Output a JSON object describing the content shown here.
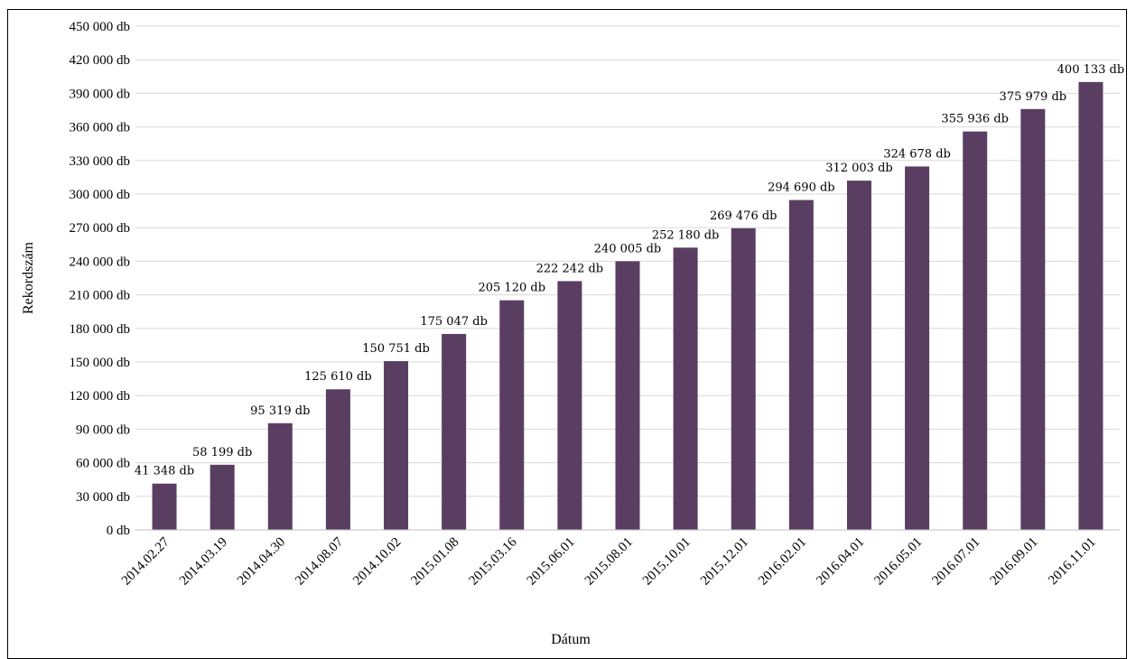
{
  "chart_data": {
    "type": "bar",
    "title": "",
    "xlabel": "Dátum",
    "ylabel": "Rekordszám",
    "ylim": [
      0,
      450000
    ],
    "y_tick_step": 30000,
    "y_tick_labels": [
      "0 db",
      "30 000 db",
      "60 000 db",
      "90 000 db",
      "120 000 db",
      "150 000 db",
      "180 000 db",
      "210 000 db",
      "240 000 db",
      "270 000 db",
      "300 000 db",
      "330 000 db",
      "360 000 db",
      "390 000 db",
      "420 000 db",
      "450 000 db"
    ],
    "grid": true,
    "legend": "none",
    "bar_color": "#5a3e62",
    "categories": [
      "2014.02.27",
      "2014.03.19",
      "2014.04.30",
      "2014.08.07",
      "2014.10.02",
      "2015.01.08",
      "2015.03.16",
      "2015.06.01",
      "2015.08.01",
      "2015.10.01",
      "2015.12.01",
      "2016.02.01",
      "2016.04.01",
      "2016.05.01",
      "2016.07.01",
      "2016.09.01",
      "2016.11.01"
    ],
    "values": [
      41348,
      58199,
      95319,
      125610,
      150751,
      175047,
      205120,
      222242,
      240005,
      252180,
      269476,
      294690,
      312003,
      324678,
      355936,
      375979,
      400133
    ],
    "data_labels": [
      "41 348 db",
      "58 199 db",
      "95 319 db",
      "125 610 db",
      "150 751 db",
      "175 047 db",
      "205 120 db",
      "222 242 db",
      "240 005 db",
      "252 180 db",
      "269 476 db",
      "294 690 db",
      "312 003 db",
      "324 678 db",
      "355 936 db",
      "375 979 db",
      "400 133 db"
    ]
  }
}
